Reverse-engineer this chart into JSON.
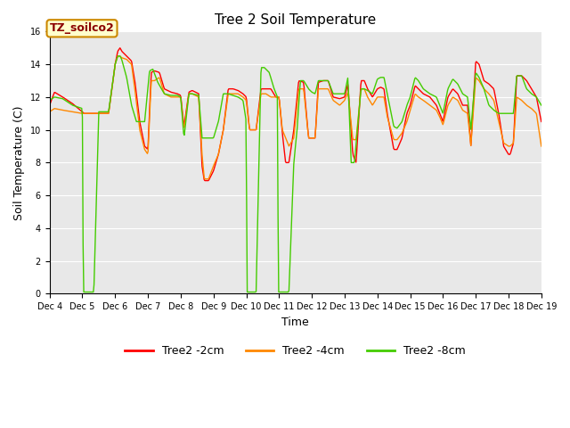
{
  "title": "Tree 2 Soil Temperature",
  "xlabel": "Time",
  "ylabel": "Soil Temperature (C)",
  "ylim": [
    0,
    16
  ],
  "yticks": [
    0,
    2,
    4,
    6,
    8,
    10,
    12,
    14,
    16
  ],
  "xtick_labels": [
    "Dec 4",
    "Dec 5",
    "Dec 6",
    "Dec 7",
    "Dec 8",
    "Dec 9",
    "Dec 10",
    "Dec 11",
    "Dec 12",
    "Dec 13",
    "Dec 14",
    "Dec 15",
    "Dec 16",
    "Dec 17",
    "Dec 18",
    "Dec 19"
  ],
  "label_box_text": "TZ_soilco2",
  "label_box_facecolor": "#ffffcc",
  "label_box_edgecolor": "#cc8800",
  "label_box_textcolor": "#8b0000",
  "line_colors": [
    "#ff0000",
    "#ff8800",
    "#44cc00"
  ],
  "line_labels": [
    "Tree2 -2cm",
    "Tree2 -4cm",
    "Tree2 -8cm"
  ],
  "background_color": "#e8e8e8",
  "title_fontsize": 11,
  "axis_fontsize": 9,
  "tick_fontsize": 8,
  "legend_fontsize": 9
}
